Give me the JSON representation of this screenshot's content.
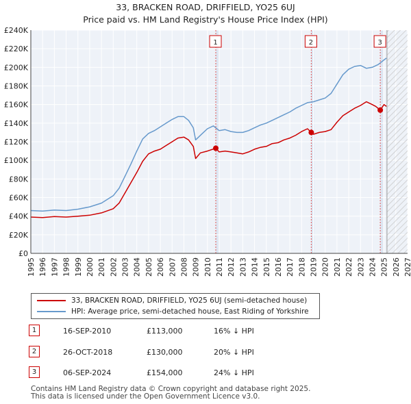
{
  "header": {
    "title_line1": "33, BRACKEN ROAD, DRIFFIELD, YO25 6UJ",
    "title_line2": "Price paid vs. HM Land Registry's House Price Index (HPI)"
  },
  "chart_data": {
    "type": "line",
    "title": "33, BRACKEN ROAD, DRIFFIELD, YO25 6UJ — Price paid vs. HM Land Registry's House Price Index (HPI)",
    "xlim": [
      1995,
      2027
    ],
    "ylim": [
      0,
      240000
    ],
    "x_ticks": [
      1995,
      1996,
      1997,
      1998,
      1999,
      2000,
      2001,
      2002,
      2003,
      2004,
      2005,
      2006,
      2007,
      2008,
      2009,
      2010,
      2011,
      2012,
      2013,
      2014,
      2015,
      2016,
      2017,
      2018,
      2019,
      2020,
      2021,
      2022,
      2023,
      2024,
      2025,
      2026,
      2027
    ],
    "y_ticks": [
      0,
      20000,
      40000,
      60000,
      80000,
      100000,
      120000,
      140000,
      160000,
      180000,
      200000,
      220000,
      240000
    ],
    "y_tick_labels": [
      "£0",
      "£20K",
      "£40K",
      "£60K",
      "£80K",
      "£100K",
      "£120K",
      "£140K",
      "£160K",
      "£180K",
      "£200K",
      "£220K",
      "£240K"
    ],
    "grid": true,
    "hatch_from": 2025.25,
    "series": [
      {
        "name": "33, BRACKEN ROAD, DRIFFIELD, YO25 6UJ (semi-detached house)",
        "color": "#cc0000",
        "x": [
          1995,
          1996,
          1997,
          1998,
          1999,
          2000,
          2001,
          2002,
          2002.5,
          2003,
          2003.5,
          2004,
          2004.5,
          2005,
          2005.5,
          2006,
          2006.5,
          2007,
          2007.5,
          2008,
          2008.4,
          2008.8,
          2009,
          2009.4,
          2010,
          2010.71,
          2011,
          2011.5,
          2012,
          2012.5,
          2013,
          2013.5,
          2014,
          2014.5,
          2015,
          2015.5,
          2016,
          2016.5,
          2017,
          2017.5,
          2018,
          2018.5,
          2018.82,
          2019,
          2019.5,
          2020,
          2020.5,
          2021,
          2021.5,
          2022,
          2022.5,
          2023,
          2023.5,
          2024,
          2024.3,
          2024.68,
          2025,
          2025.2
        ],
        "values": [
          39000,
          38500,
          39500,
          39000,
          40000,
          41000,
          43500,
          48000,
          54000,
          65000,
          76000,
          87000,
          99000,
          107000,
          110000,
          112000,
          116000,
          120000,
          124000,
          125000,
          122000,
          115000,
          102000,
          108000,
          110000,
          113000,
          109000,
          110000,
          109000,
          108000,
          107000,
          109000,
          112000,
          114000,
          115000,
          118000,
          119000,
          122000,
          124000,
          127000,
          131000,
          134000,
          130000,
          128000,
          130000,
          131000,
          133000,
          141000,
          148000,
          152000,
          156000,
          159000,
          163000,
          160000,
          158000,
          154000,
          160000,
          158000
        ]
      },
      {
        "name": "HPI: Average price, semi-detached house, East Riding of Yorkshire",
        "color": "#6699cc",
        "x": [
          1995,
          1996,
          1997,
          1998,
          1999,
          2000,
          2001,
          2002,
          2002.5,
          2003,
          2003.5,
          2004,
          2004.5,
          2005,
          2005.5,
          2006,
          2006.5,
          2007,
          2007.5,
          2008,
          2008.4,
          2008.8,
          2009,
          2009.5,
          2010,
          2010.5,
          2011,
          2011.5,
          2012,
          2012.5,
          2013,
          2013.5,
          2014,
          2014.5,
          2015,
          2015.5,
          2016,
          2016.5,
          2017,
          2017.5,
          2018,
          2018.5,
          2019,
          2019.5,
          2020,
          2020.5,
          2021,
          2021.5,
          2022,
          2022.5,
          2023,
          2023.5,
          2024,
          2024.5,
          2025,
          2025.2
        ],
        "values": [
          46000,
          45500,
          46500,
          46000,
          47500,
          50000,
          54000,
          62000,
          70000,
          83000,
          96000,
          110000,
          123000,
          129000,
          132000,
          136000,
          140000,
          144000,
          147000,
          147000,
          143000,
          135000,
          122000,
          128000,
          134000,
          137000,
          132000,
          133000,
          131000,
          130000,
          130000,
          132000,
          135000,
          138000,
          140000,
          143000,
          146000,
          149000,
          152000,
          156000,
          159000,
          162000,
          163000,
          165000,
          167000,
          172000,
          182000,
          192000,
          198000,
          201000,
          202000,
          199000,
          200000,
          203000,
          208000,
          210000
        ]
      }
    ],
    "sales": [
      {
        "label": "1",
        "x": 2010.71,
        "value": 113000
      },
      {
        "label": "2",
        "x": 2018.82,
        "value": 130000
      },
      {
        "label": "3",
        "x": 2024.68,
        "value": 154000
      }
    ]
  },
  "legend": {
    "property_label": "33, BRACKEN ROAD, DRIFFIELD, YO25 6UJ (semi-detached house)",
    "hpi_label": "HPI: Average price, semi-detached house, East Riding of Yorkshire"
  },
  "transactions": [
    {
      "num": "1",
      "date": "16-SEP-2010",
      "price": "£113,000",
      "hpi": "16% ↓ HPI"
    },
    {
      "num": "2",
      "date": "26-OCT-2018",
      "price": "£130,000",
      "hpi": "20% ↓ HPI"
    },
    {
      "num": "3",
      "date": "06-SEP-2024",
      "price": "£154,000",
      "hpi": "24% ↓ HPI"
    }
  ],
  "footer": {
    "line1": "Contains HM Land Registry data © Crown copyright and database right 2025.",
    "line2": "This data is licensed under the Open Government Licence v3.0."
  }
}
